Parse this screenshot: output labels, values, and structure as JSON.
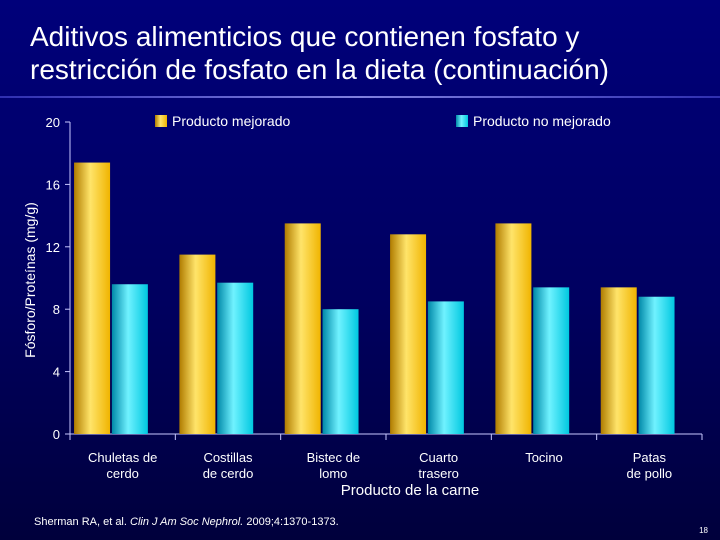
{
  "slide": {
    "title_line1": "Aditivos alimenticios que contienen fosfato y",
    "title_line2": "restricción de fosfato en la dieta (continuación)",
    "page_number": "18"
  },
  "citation": {
    "authors": "Sherman RA, et al. ",
    "journal": "Clin J Am Soc Nephrol.",
    "details": " 2009;4:1370-1373."
  },
  "colors": {
    "series1": "#f0b400",
    "series1_light": "#ffe46a",
    "series1_dark": "#b07c00",
    "series2": "#00c8e0",
    "series2_light": "#70f2ff",
    "series2_dark": "#0088a8"
  },
  "chart_data": {
    "type": "bar",
    "title": "",
    "xlabel": "Producto de la carne",
    "ylabel": "Fósforo/Proteínas (mg/g)",
    "ylim": [
      0,
      20
    ],
    "yticks": [
      "0",
      "4",
      "8",
      "12",
      "16",
      "20"
    ],
    "grid": false,
    "legend_position": "top",
    "categories": [
      [
        "Chuletas de",
        "cerdo"
      ],
      [
        "Costillas",
        "de cerdo"
      ],
      [
        "Bistec de",
        "lomo"
      ],
      [
        "Cuarto",
        "trasero"
      ],
      [
        "Tocino"
      ],
      [
        "Patas",
        "de pollo"
      ]
    ],
    "series": [
      {
        "name": "Producto mejorado",
        "values": [
          17.4,
          11.5,
          13.5,
          12.8,
          13.5,
          9.4
        ]
      },
      {
        "name": "Producto no mejorado",
        "values": [
          9.6,
          9.7,
          8.0,
          8.5,
          9.4,
          8.8
        ]
      }
    ]
  }
}
